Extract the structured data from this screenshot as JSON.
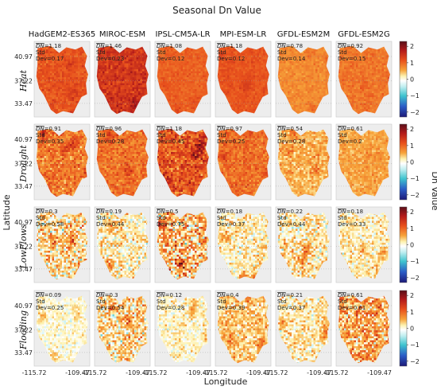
{
  "chart_data": {
    "type": "heatmap",
    "title": "Seasonal Dn Value",
    "xlabel": "Longitude",
    "ylabel": "Latitude",
    "colorbar_label": "Dn Value",
    "colorbar_ticks": [
      "2",
      "1",
      "0",
      "−1",
      "−2"
    ],
    "colorbar_range": [
      -2.3,
      2.3
    ],
    "x_ticks": [
      "-115.72",
      "-109.47"
    ],
    "y_ticks": [
      "40.97",
      "37.22",
      "33.47"
    ],
    "columns": [
      "HadGEM2-ES365",
      "MIROC-ESM",
      "IPSL-CM5A-LR",
      "MPI-ESM-LR",
      "GFDL-ESM2M",
      "GFDL-ESM2G"
    ],
    "rows": [
      "Heat",
      "Drought",
      "LowFlows",
      "Flooding"
    ],
    "dn_symbol": "DN",
    "std_label": "Std",
    "dev_label": "Dev",
    "mean_dn": [
      [
        1.18,
        1.46,
        1.08,
        1.18,
        0.78,
        0.92
      ],
      [
        0.91,
        0.96,
        1.18,
        0.97,
        0.54,
        0.61
      ],
      [
        0.3,
        0.19,
        0.5,
        0.18,
        0.22,
        0.18
      ],
      [
        0.09,
        0.3,
        0.12,
        0.4,
        0.21,
        0.61
      ]
    ],
    "std_dev": [
      [
        0.17,
        0.23,
        0.12,
        0.12,
        0.14,
        0.15
      ],
      [
        0.35,
        0.28,
        0.45,
        0.25,
        0.28,
        0.2
      ],
      [
        0.58,
        0.44,
        0.75,
        0.37,
        0.44,
        0.33
      ],
      [
        0.25,
        0.54,
        0.28,
        0.39,
        0.37,
        0.61
      ]
    ]
  }
}
